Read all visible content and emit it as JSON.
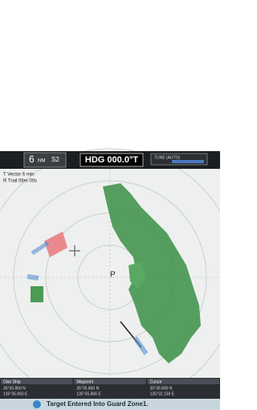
{
  "header": {
    "range": "6",
    "range_unit": "NM",
    "mode": "S2",
    "heading": "HDG 000.0°T",
    "tune": "TUNE (AUTO)"
  },
  "overlay": {
    "vector": "T Vector 6 min",
    "trail": "R Trail 06m 00s"
  },
  "info_panels": [
    {
      "title": "Own Ship",
      "posn": "35°35.860 N",
      "posn2": "135°35.860 E"
    },
    {
      "title": "Waypoint",
      "posn": "35°35.860 N",
      "posn2": "135°35.866 E"
    },
    {
      "title": "Cursor",
      "posn": "35°36.890 N",
      "posn2": "135°32.159 E"
    }
  ],
  "alert": "Target Entered Into Guard Zone1."
}
